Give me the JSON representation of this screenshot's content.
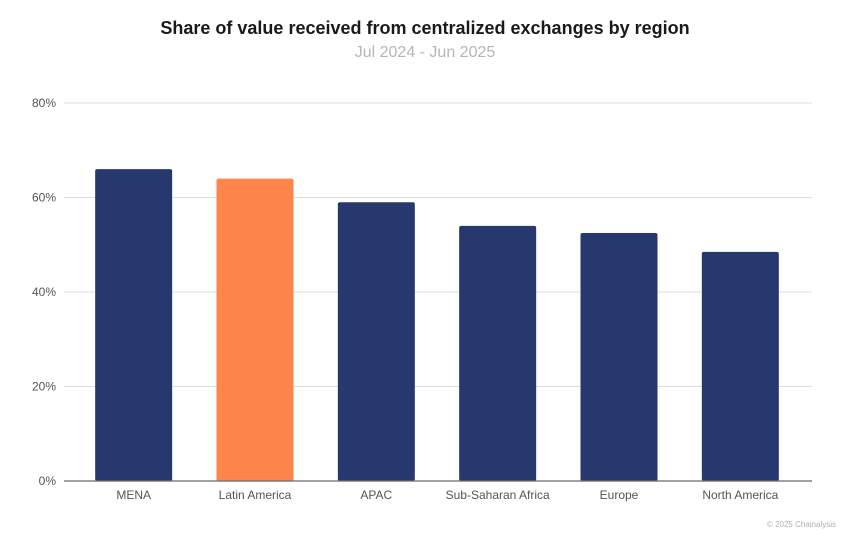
{
  "chart_data": {
    "type": "bar",
    "title": "Share of value received from centralized exchanges by region",
    "subtitle": "Jul 2024 - Jun 2025",
    "xlabel": "",
    "ylabel": "",
    "categories": [
      "MENA",
      "Latin America",
      "APAC",
      "Sub-Saharan Africa",
      "Europe",
      "North America"
    ],
    "values": [
      66,
      64,
      59,
      54,
      52.5,
      48.5
    ],
    "colors": [
      "#27386f",
      "#ff864b",
      "#27386f",
      "#27386f",
      "#27386f",
      "#27386f"
    ],
    "ylim": [
      0,
      80
    ],
    "yticks": [
      0,
      20,
      40,
      60,
      80
    ],
    "ytick_labels": [
      "0%",
      "20%",
      "40%",
      "60%",
      "80%"
    ],
    "grid": true,
    "legend": "none"
  },
  "credit": "© 2025 Chainalysis"
}
